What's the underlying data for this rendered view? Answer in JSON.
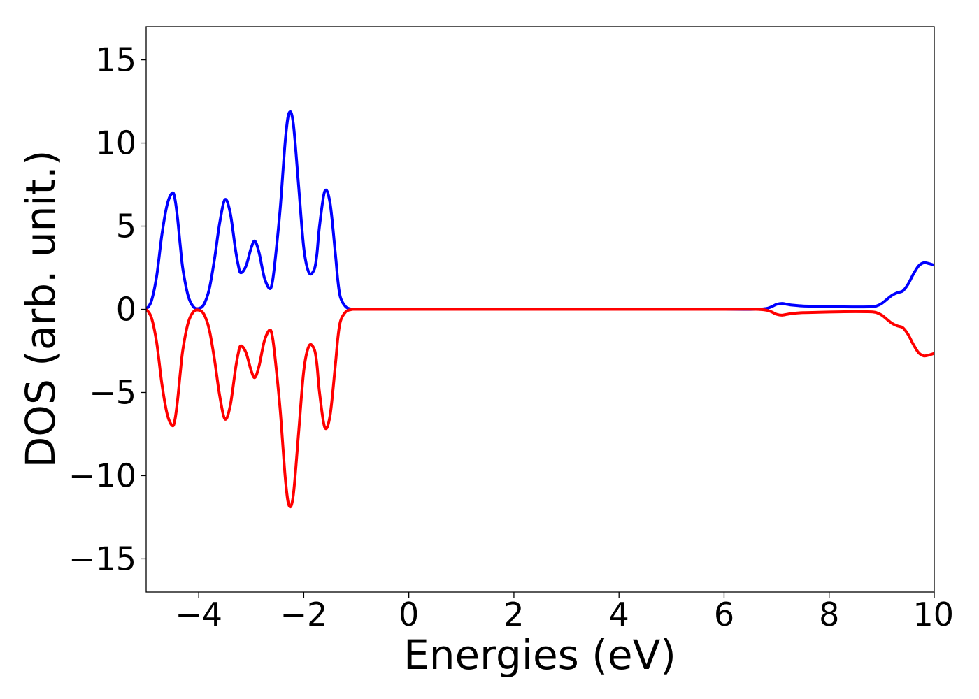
{
  "chart_data": {
    "type": "line",
    "title": "",
    "xlabel": "Energies (eV)",
    "ylabel": "DOS (arb. unit.)",
    "xlim": [
      -5,
      10
    ],
    "ylim": [
      -17,
      17
    ],
    "xticks": [
      -4,
      -2,
      0,
      2,
      4,
      6,
      8,
      10
    ],
    "xtick_labels": [
      "−4",
      "−2",
      "0",
      "2",
      "4",
      "6",
      "8",
      "10"
    ],
    "yticks": [
      -15,
      -10,
      -5,
      0,
      5,
      10,
      15
    ],
    "ytick_labels": [
      "−15",
      "−10",
      "−5",
      "0",
      "5",
      "10",
      "15"
    ],
    "grid": false,
    "legend": "none",
    "series": [
      {
        "color": "#0000ff",
        "x": [
          -5.0,
          -4.9,
          -4.8,
          -4.7,
          -4.6,
          -4.5,
          -4.45,
          -4.4,
          -4.35,
          -4.3,
          -4.2,
          -4.1,
          -4.0,
          -3.9,
          -3.8,
          -3.7,
          -3.6,
          -3.5,
          -3.4,
          -3.3,
          -3.25,
          -3.2,
          -3.1,
          -3.0,
          -2.93,
          -2.85,
          -2.75,
          -2.65,
          -2.6,
          -2.55,
          -2.45,
          -2.35,
          -2.28,
          -2.2,
          -2.1,
          -2.0,
          -1.9,
          -1.8,
          -1.75,
          -1.7,
          -1.6,
          -1.5,
          -1.4,
          -1.35,
          -1.3,
          -1.2,
          -1.1,
          -1.05,
          -1.0,
          -0.9,
          -0.8,
          -0.7,
          -0.6,
          -0.5,
          0.0,
          2.0,
          4.0,
          6.0,
          6.6,
          6.8,
          6.9,
          7.0,
          7.1,
          7.2,
          7.3,
          7.5,
          7.8,
          8.2,
          8.5,
          8.8,
          8.9,
          9.0,
          9.1,
          9.2,
          9.3,
          9.4,
          9.5,
          9.6,
          9.7,
          9.8,
          9.9,
          10.0
        ],
        "values": [
          0.0,
          0.5,
          2.0,
          4.5,
          6.3,
          7.0,
          6.6,
          5.4,
          3.8,
          2.4,
          0.8,
          0.15,
          0.05,
          0.3,
          1.2,
          3.0,
          5.2,
          6.6,
          5.8,
          3.6,
          2.7,
          2.2,
          2.6,
          3.7,
          4.1,
          3.4,
          1.9,
          1.25,
          1.6,
          2.8,
          6.0,
          10.2,
          11.8,
          11.2,
          7.5,
          3.7,
          2.2,
          2.4,
          3.3,
          5.0,
          7.1,
          6.4,
          3.4,
          1.7,
          0.7,
          0.15,
          0.02,
          0.0,
          0.0,
          0.0,
          0.0,
          0.0,
          0.0,
          0.0,
          0.0,
          0.0,
          0.0,
          0.0,
          0.0,
          0.05,
          0.15,
          0.3,
          0.35,
          0.3,
          0.25,
          0.2,
          0.18,
          0.15,
          0.14,
          0.15,
          0.2,
          0.35,
          0.6,
          0.85,
          1.0,
          1.1,
          1.5,
          2.1,
          2.6,
          2.8,
          2.75,
          2.65
        ]
      },
      {
        "color": "#ff0000",
        "x": [
          -5.0,
          -4.9,
          -4.8,
          -4.7,
          -4.6,
          -4.5,
          -4.45,
          -4.4,
          -4.35,
          -4.3,
          -4.2,
          -4.1,
          -4.0,
          -3.9,
          -3.8,
          -3.7,
          -3.6,
          -3.5,
          -3.4,
          -3.3,
          -3.25,
          -3.2,
          -3.1,
          -3.0,
          -2.93,
          -2.85,
          -2.75,
          -2.65,
          -2.6,
          -2.55,
          -2.45,
          -2.35,
          -2.28,
          -2.2,
          -2.1,
          -2.0,
          -1.9,
          -1.8,
          -1.75,
          -1.7,
          -1.6,
          -1.5,
          -1.4,
          -1.35,
          -1.3,
          -1.2,
          -1.1,
          -1.05,
          -1.0,
          -0.9,
          -0.8,
          -0.7,
          -0.6,
          -0.5,
          0.0,
          2.0,
          4.0,
          6.0,
          6.6,
          6.8,
          6.9,
          7.0,
          7.1,
          7.2,
          7.3,
          7.5,
          7.8,
          8.2,
          8.5,
          8.8,
          8.9,
          9.0,
          9.1,
          9.2,
          9.3,
          9.4,
          9.5,
          9.6,
          9.7,
          9.8,
          9.9,
          10.0
        ],
        "values": [
          0.0,
          -0.5,
          -2.0,
          -4.5,
          -6.3,
          -7.0,
          -6.6,
          -5.4,
          -3.8,
          -2.4,
          -0.8,
          -0.15,
          -0.05,
          -0.3,
          -1.2,
          -3.0,
          -5.2,
          -6.6,
          -5.8,
          -3.6,
          -2.7,
          -2.2,
          -2.6,
          -3.7,
          -4.1,
          -3.4,
          -1.9,
          -1.25,
          -1.6,
          -2.8,
          -6.0,
          -10.2,
          -11.8,
          -11.2,
          -7.5,
          -3.7,
          -2.2,
          -2.4,
          -3.3,
          -5.0,
          -7.1,
          -6.4,
          -3.4,
          -1.7,
          -0.7,
          -0.15,
          -0.02,
          0.0,
          0.0,
          0.0,
          0.0,
          0.0,
          0.0,
          0.0,
          0.0,
          0.0,
          0.0,
          0.0,
          0.0,
          -0.05,
          -0.15,
          -0.3,
          -0.35,
          -0.3,
          -0.25,
          -0.2,
          -0.18,
          -0.15,
          -0.14,
          -0.15,
          -0.2,
          -0.35,
          -0.6,
          -0.85,
          -1.0,
          -1.1,
          -1.5,
          -2.1,
          -2.6,
          -2.8,
          -2.75,
          -2.65
        ]
      }
    ]
  }
}
